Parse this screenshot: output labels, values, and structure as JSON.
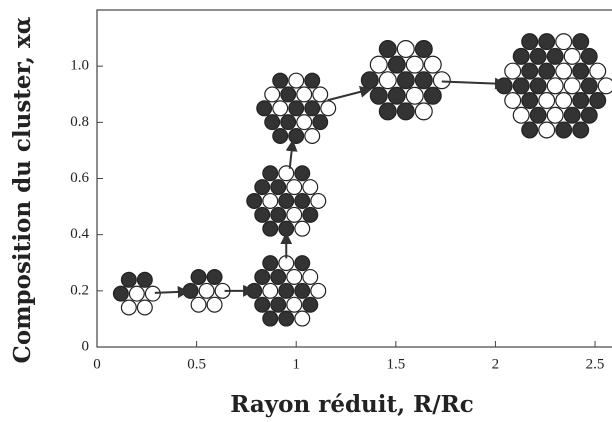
{
  "chart_data": {
    "type": "scatter",
    "xlabel": "Rayon réduit, R/Rc",
    "ylabel": "Composition du cluster, xα",
    "x": [
      0.2,
      0.55,
      0.95,
      0.95,
      1.0,
      1.55,
      2.3
    ],
    "values": [
      0.19,
      0.2,
      0.2,
      0.52,
      0.85,
      0.95,
      0.93
    ],
    "xlim": [
      0,
      2.55
    ],
    "ylim": [
      0,
      1.2
    ],
    "xticks": [
      0,
      0.5,
      1,
      1.5,
      2,
      2.5
    ],
    "yticks": [
      0,
      0.2,
      0.4,
      0.6,
      0.8,
      {
        "value": 1,
        "label": "1.0"
      }
    ],
    "color": "#333333"
  }
}
